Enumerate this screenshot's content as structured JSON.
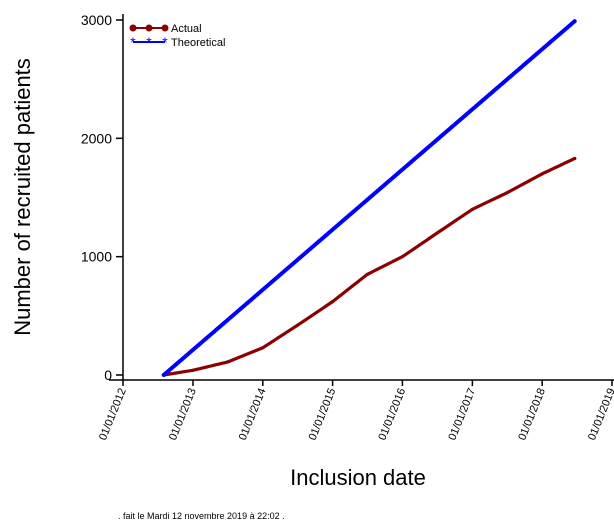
{
  "chart_data": {
    "type": "line",
    "xlabel": "Inclusion date",
    "ylabel": "Number of recruited patients",
    "ylim": [
      0,
      3000
    ],
    "yticks": [
      0,
      1000,
      2000,
      3000
    ],
    "xlim": [
      "2012-01-01",
      "2019-01-01"
    ],
    "xtick_labels": [
      "01/01/2012",
      "01/01/2013",
      "01/01/2014",
      "01/01/2015",
      "01/01/2016",
      "01/01/2017",
      "01/01/2018",
      "01/01/2019"
    ],
    "legend_position": "top-left",
    "series": [
      {
        "name": "Actual",
        "color": "#8B0000",
        "marker": "dot",
        "x": [
          "2012-08-01",
          "2013-01-01",
          "2013-07-01",
          "2014-01-01",
          "2014-07-01",
          "2015-01-01",
          "2015-07-01",
          "2016-01-01",
          "2016-07-01",
          "2017-01-01",
          "2017-07-01",
          "2018-01-01",
          "2018-06-20"
        ],
        "y": [
          0,
          40,
          110,
          230,
          420,
          620,
          850,
          1000,
          1200,
          1400,
          1540,
          1700,
          1830
        ]
      },
      {
        "name": "Theoretical",
        "color": "#0000FF",
        "marker": "star",
        "x": [
          "2012-08-01",
          "2018-06-20"
        ],
        "y": [
          0,
          2990
        ]
      }
    ]
  },
  "footer_text": ". fait le Mardi 12 novembre 2019 à 22:02 ."
}
